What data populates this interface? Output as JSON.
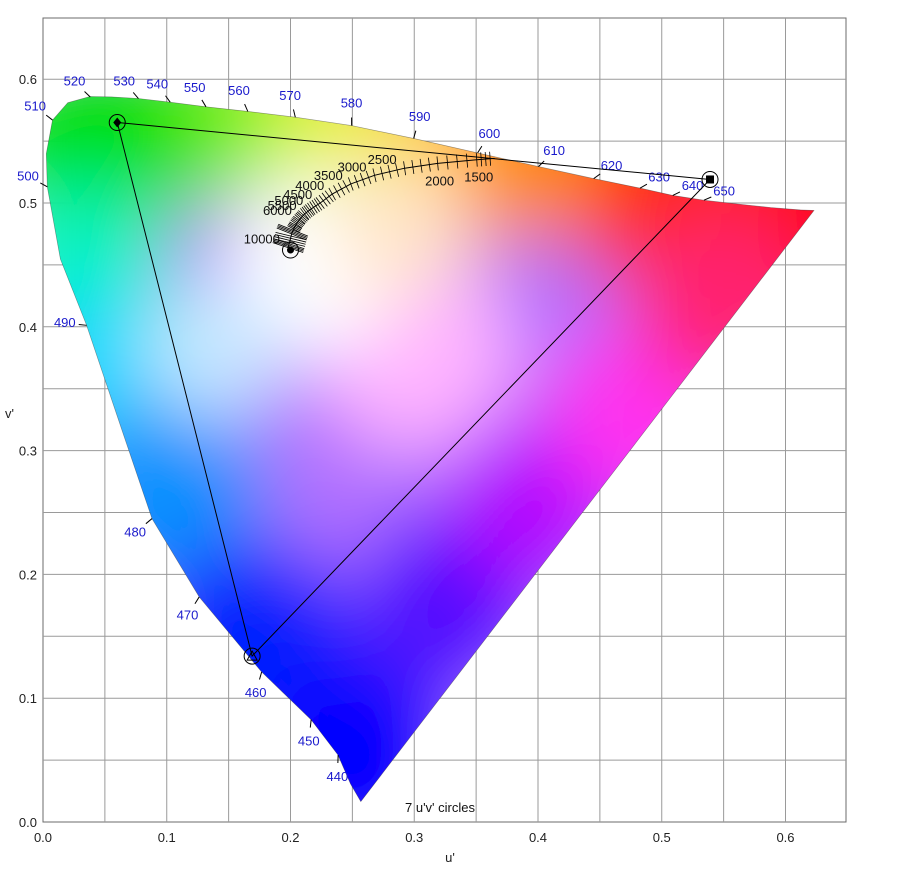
{
  "chart_data": {
    "type": "scatter",
    "title": "",
    "xlabel": "u'",
    "ylabel": "v'",
    "xlim": [
      0.0,
      0.65
    ],
    "ylim": [
      0.0,
      0.65
    ],
    "x_ticks": [
      "0.0",
      "0.1",
      "0.2",
      "0.3",
      "0.4",
      "0.5",
      "0.6"
    ],
    "y_ticks": [
      "0.0",
      "0.1",
      "0.2",
      "0.3",
      "0.4",
      "0.5",
      "0.6"
    ],
    "grid": true,
    "spectral_locus": [
      [
        0.2568,
        0.0165
      ],
      [
        0.2485,
        0.0308
      ],
      [
        0.2384,
        0.0541
      ],
      [
        0.2166,
        0.0827
      ],
      [
        0.1766,
        0.1213
      ],
      [
        0.1262,
        0.1818
      ],
      [
        0.0881,
        0.2451
      ],
      [
        0.0646,
        0.3143
      ],
      [
        0.0352,
        0.4012
      ],
      [
        0.0141,
        0.4547
      ],
      [
        0.0035,
        0.5131
      ],
      [
        0.0027,
        0.5398
      ],
      [
        0.0077,
        0.567
      ],
      [
        0.02,
        0.581
      ],
      [
        0.038,
        0.586
      ],
      [
        0.0555,
        0.5857
      ],
      [
        0.0771,
        0.5844
      ],
      [
        0.1028,
        0.5814
      ],
      [
        0.1317,
        0.5777
      ],
      [
        0.1655,
        0.574
      ],
      [
        0.2039,
        0.5693
      ],
      [
        0.2493,
        0.5625
      ],
      [
        0.2995,
        0.5522
      ],
      [
        0.3512,
        0.5405
      ],
      [
        0.4004,
        0.5294
      ],
      [
        0.445,
        0.5197
      ],
      [
        0.4824,
        0.512
      ],
      [
        0.5089,
        0.5061
      ],
      [
        0.5341,
        0.5023
      ],
      [
        0.5545,
        0.4999
      ],
      [
        0.5725,
        0.498
      ],
      [
        0.588,
        0.4964
      ],
      [
        0.6,
        0.4954
      ],
      [
        0.612,
        0.4944
      ],
      [
        0.623,
        0.494
      ]
    ],
    "wavelength_labels": [
      {
        "label": "440",
        "u": 0.2385,
        "v": 0.0541
      },
      {
        "label": "450",
        "u": 0.2167,
        "v": 0.0827
      },
      {
        "label": "460",
        "u": 0.1767,
        "v": 0.1213
      },
      {
        "label": "470",
        "u": 0.1262,
        "v": 0.1818
      },
      {
        "label": "480",
        "u": 0.0881,
        "v": 0.2451
      },
      {
        "label": "490",
        "u": 0.0353,
        "v": 0.4012
      },
      {
        "label": "500",
        "u": 0.0035,
        "v": 0.5131
      },
      {
        "label": "510",
        "u": 0.0077,
        "v": 0.567
      },
      {
        "label": "520",
        "u": 0.0382,
        "v": 0.5856
      },
      {
        "label": "530",
        "u": 0.0771,
        "v": 0.5844
      },
      {
        "label": "540",
        "u": 0.1028,
        "v": 0.5814
      },
      {
        "label": "550",
        "u": 0.1317,
        "v": 0.5777
      },
      {
        "label": "560",
        "u": 0.1655,
        "v": 0.574
      },
      {
        "label": "570",
        "u": 0.2039,
        "v": 0.5693
      },
      {
        "label": "580",
        "u": 0.2494,
        "v": 0.5626
      },
      {
        "label": "590",
        "u": 0.2995,
        "v": 0.5522
      },
      {
        "label": "600",
        "u": 0.3512,
        "v": 0.5405
      },
      {
        "label": "610",
        "u": 0.4004,
        "v": 0.5294
      },
      {
        "label": "620",
        "u": 0.445,
        "v": 0.5197
      },
      {
        "label": "630",
        "u": 0.4824,
        "v": 0.512
      },
      {
        "label": "640",
        "u": 0.5089,
        "v": 0.5061
      },
      {
        "label": "650",
        "u": 0.5341,
        "v": 0.5023
      }
    ],
    "planckian_locus": [
      [
        0.1979,
        0.464
      ],
      [
        0.1992,
        0.468
      ],
      [
        0.2009,
        0.475
      ],
      [
        0.2025,
        0.479
      ],
      [
        0.2047,
        0.483
      ],
      [
        0.2076,
        0.487
      ],
      [
        0.2114,
        0.4912
      ],
      [
        0.2168,
        0.4953
      ],
      [
        0.224,
        0.5
      ],
      [
        0.2337,
        0.5072
      ],
      [
        0.2487,
        0.5154
      ],
      [
        0.2679,
        0.5224
      ],
      [
        0.2922,
        0.5281
      ],
      [
        0.3189,
        0.532
      ],
      [
        0.3505,
        0.535
      ],
      [
        0.3649,
        0.536
      ]
    ],
    "cct_labels": [
      {
        "label": "10000",
        "u": 0.1979,
        "v": 0.464
      },
      {
        "label": "6000",
        "u": 0.2076,
        "v": 0.487
      },
      {
        "label": "5500",
        "u": 0.2114,
        "v": 0.4912
      },
      {
        "label": "5000",
        "u": 0.2168,
        "v": 0.4953
      },
      {
        "label": "4500",
        "u": 0.224,
        "v": 0.5
      },
      {
        "label": "4000",
        "u": 0.2337,
        "v": 0.5072
      },
      {
        "label": "3500",
        "u": 0.2487,
        "v": 0.5154
      },
      {
        "label": "3000",
        "u": 0.2679,
        "v": 0.5224
      },
      {
        "label": "2500",
        "u": 0.2922,
        "v": 0.5281
      },
      {
        "label": "2000",
        "u": 0.3189,
        "v": 0.532
      },
      {
        "label": "1500",
        "u": 0.3505,
        "v": 0.535
      }
    ],
    "gamut_triangle": [
      {
        "name": "red",
        "u": 0.539,
        "v": 0.519,
        "marker": "square"
      },
      {
        "name": "green",
        "u": 0.06,
        "v": 0.565,
        "marker": "diamond"
      },
      {
        "name": "blue",
        "u": 0.169,
        "v": 0.134,
        "marker": "triangle"
      }
    ],
    "white_point": {
      "u": 0.2,
      "v": 0.462,
      "marker": "dot"
    },
    "note": "7  u'v' circles",
    "colors": {
      "grid": "#9a9a9a",
      "wavelength_text": "#1a1acc",
      "triangle": "#000000"
    }
  }
}
